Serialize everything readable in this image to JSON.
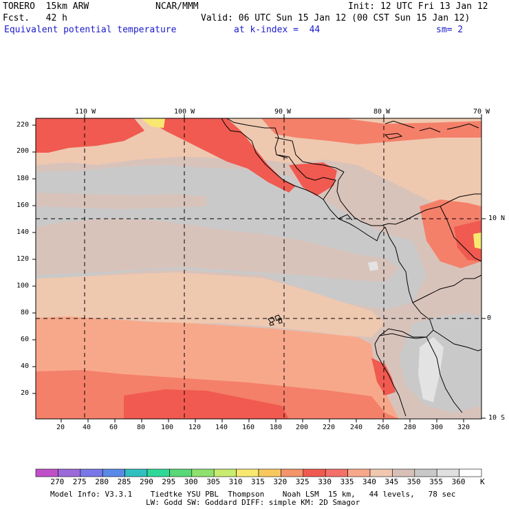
{
  "header": {
    "model": "TORERO  15km ARW",
    "center": "NCAR/MMM",
    "init": "Init: 12 UTC Fri 13 Jan 12",
    "fcst": "Fcst.   42 h",
    "valid": "Valid: 06 UTC Sun 15 Jan 12 (00 CST Sun 15 Jan 12)",
    "field": "Equivalent potential temperature",
    "level": "at k-index =  44",
    "smooth": "sm= 2"
  },
  "axes": {
    "top_lon_labels": [
      "110 W",
      "100 W",
      "90 W",
      "80 W",
      "70 W"
    ],
    "right_lat_labels": [
      "10 N",
      "0",
      "10 S"
    ],
    "left_y_ticks": [
      "220",
      "200",
      "180",
      "160",
      "140",
      "120",
      "100",
      "80",
      "60",
      "40",
      "20"
    ],
    "bottom_x_ticks": [
      "20",
      "40",
      "60",
      "80",
      "100",
      "120",
      "140",
      "160",
      "180",
      "200",
      "220",
      "240",
      "260",
      "280",
      "300",
      "320"
    ]
  },
  "colorbar": {
    "unit": "K",
    "labels": [
      "270",
      "275",
      "280",
      "285",
      "290",
      "295",
      "300",
      "305",
      "310",
      "315",
      "320",
      "325",
      "330",
      "335",
      "340",
      "345",
      "350",
      "355",
      "360"
    ],
    "colors": [
      "#c050c8",
      "#9a6ad8",
      "#7878e8",
      "#5a8ae8",
      "#30c0c0",
      "#30d898",
      "#58d878",
      "#90e070",
      "#c8ec70",
      "#f8e870",
      "#f8c860",
      "#f4946a",
      "#f05a50",
      "#f4706a",
      "#f8a88a",
      "#f0c8b0",
      "#d8c0b8",
      "#c8c8c8",
      "#e0e0e0",
      "#ffffff"
    ]
  },
  "field_colors": {
    "c325": "#f05a50",
    "c330": "#f4806a",
    "c335": "#f8a88a",
    "c340": "#efc8b0",
    "c345": "#d8c3bb",
    "c350": "#c9c9c9",
    "c355": "#e3e3e3",
    "c315": "#f8e870"
  },
  "footer": {
    "line1": "Model Info: V3.3.1    Tiedtke YSU PBL  Thompson    Noah LSM  15 km,   44 levels,   78 sec",
    "line2": "LW: Godd SW: Goddard DIFF: simple KM: 2D Smagor"
  }
}
